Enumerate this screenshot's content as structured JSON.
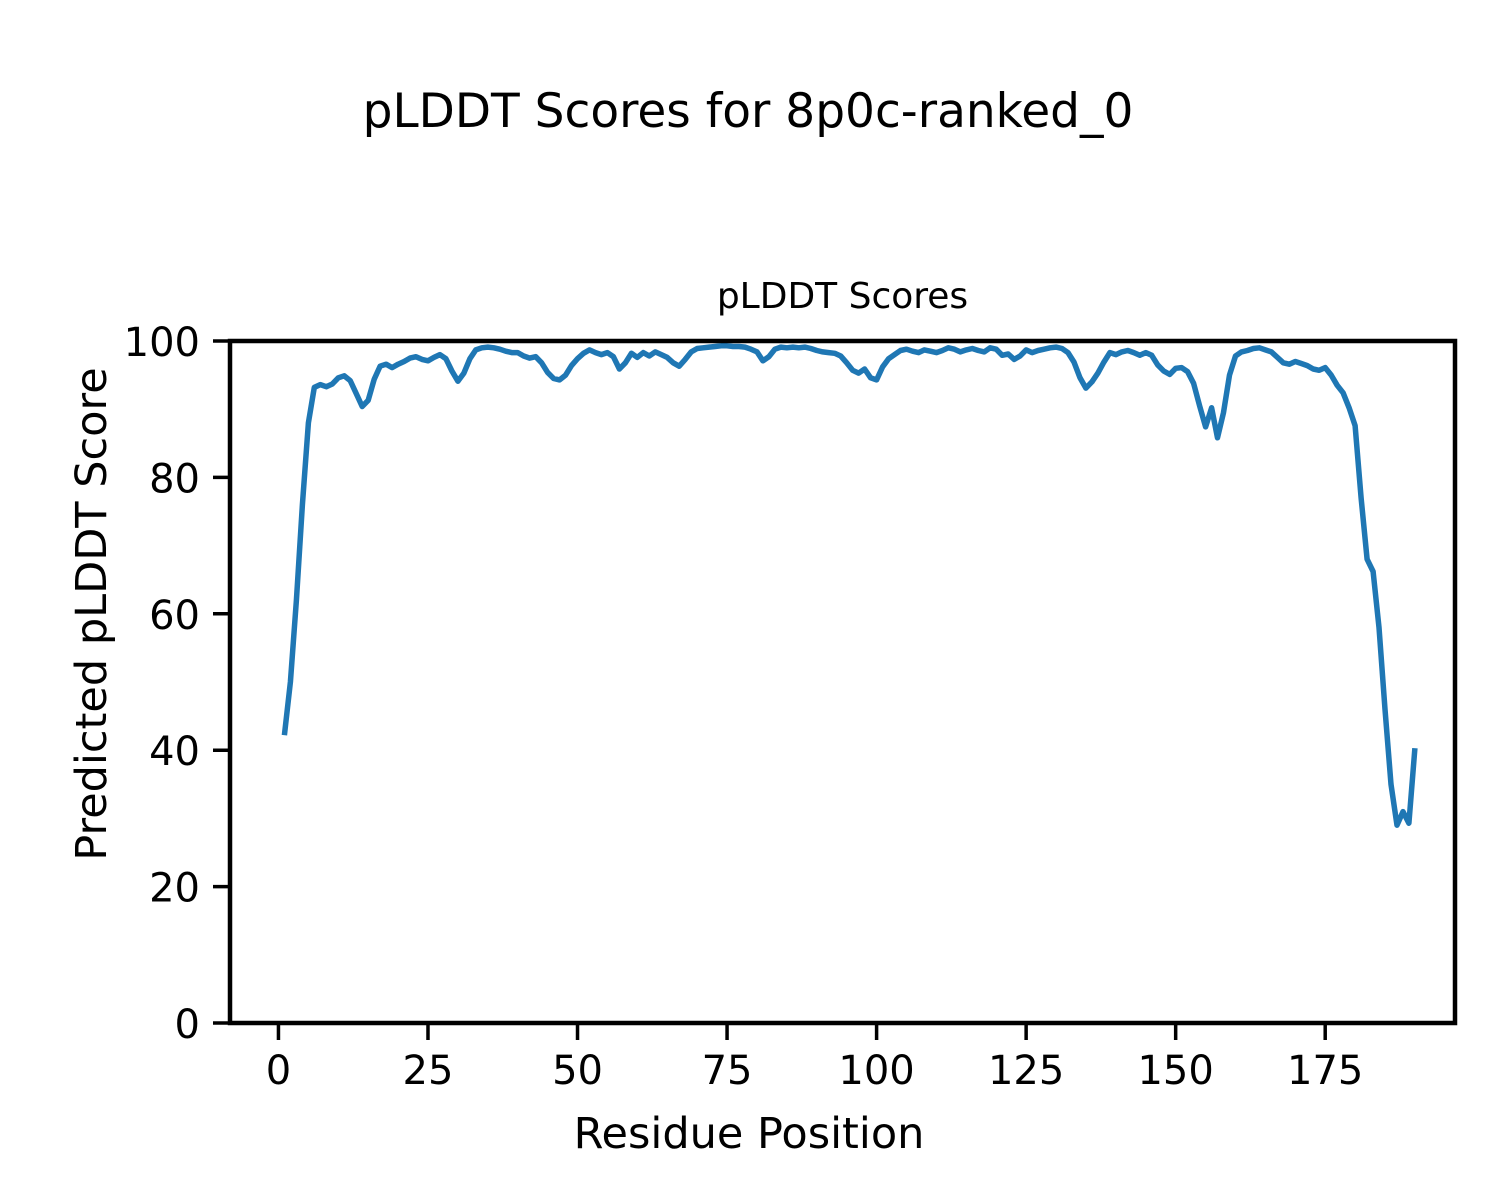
{
  "figure": {
    "suptitle": "pLDDT Scores for 8p0c-ranked_0",
    "background_color": "#ffffff",
    "text_color": "#000000"
  },
  "chart_data": {
    "type": "line",
    "title": "pLDDT Scores",
    "xlabel": "Residue Position",
    "ylabel": "Predicted pLDDT Score",
    "xlim": [
      -8.1,
      196.7
    ],
    "ylim": [
      0,
      100
    ],
    "x_ticks": [
      0,
      25,
      50,
      75,
      100,
      125,
      150,
      175
    ],
    "y_ticks": [
      0,
      20,
      40,
      60,
      80,
      100
    ],
    "grid": false,
    "legend_position": "none",
    "line_color": "#1f77b4",
    "line_width": 5.5,
    "axis_color": "#000000",
    "series": [
      {
        "name": "pLDDT",
        "x": [
          1,
          2,
          3,
          4,
          5,
          6,
          7,
          8,
          9,
          10,
          11,
          12,
          13,
          14,
          15,
          16,
          17,
          18,
          19,
          20,
          21,
          22,
          23,
          24,
          25,
          26,
          27,
          28,
          29,
          30,
          31,
          32,
          33,
          34,
          35,
          36,
          37,
          38,
          39,
          40,
          41,
          42,
          43,
          44,
          45,
          46,
          47,
          48,
          49,
          50,
          51,
          52,
          53,
          54,
          55,
          56,
          57,
          58,
          59,
          60,
          61,
          62,
          63,
          64,
          65,
          66,
          67,
          68,
          69,
          70,
          71,
          72,
          73,
          74,
          75,
          76,
          77,
          78,
          79,
          80,
          81,
          82,
          83,
          84,
          85,
          86,
          87,
          88,
          89,
          90,
          91,
          92,
          93,
          94,
          95,
          96,
          97,
          98,
          99,
          100,
          101,
          102,
          103,
          104,
          105,
          106,
          107,
          108,
          109,
          110,
          111,
          112,
          113,
          114,
          115,
          116,
          117,
          118,
          119,
          120,
          121,
          122,
          123,
          124,
          125,
          126,
          127,
          128,
          129,
          130,
          131,
          132,
          133,
          134,
          135,
          136,
          137,
          138,
          139,
          140,
          141,
          142,
          143,
          144,
          145,
          146,
          147,
          148,
          149,
          150,
          151,
          152,
          153,
          154,
          155,
          156,
          157,
          158,
          159,
          160,
          161,
          162,
          163,
          164,
          165,
          166,
          167,
          168,
          169,
          170,
          171,
          172,
          173,
          174,
          175,
          176,
          177,
          178,
          179,
          180,
          181,
          182,
          183,
          184,
          185,
          186,
          187,
          188,
          189,
          190
        ],
        "y": [
          42.2,
          50.0,
          62.0,
          76.0,
          88.0,
          93.2,
          93.6,
          93.3,
          93.7,
          94.6,
          94.9,
          94.2,
          92.3,
          90.4,
          91.3,
          94.4,
          96.3,
          96.6,
          96.1,
          96.6,
          97.0,
          97.5,
          97.7,
          97.3,
          97.1,
          97.6,
          98.0,
          97.4,
          95.6,
          94.1,
          95.3,
          97.4,
          98.7,
          99.0,
          99.1,
          99.0,
          98.8,
          98.5,
          98.3,
          98.3,
          97.8,
          97.5,
          97.7,
          96.8,
          95.4,
          94.5,
          94.3,
          95.0,
          96.4,
          97.4,
          98.2,
          98.7,
          98.3,
          98.0,
          98.3,
          97.7,
          95.9,
          96.8,
          98.2,
          97.6,
          98.3,
          97.8,
          98.4,
          98.0,
          97.6,
          96.8,
          96.3,
          97.3,
          98.4,
          98.9,
          99.0,
          99.1,
          99.2,
          99.3,
          99.3,
          99.2,
          99.2,
          99.1,
          98.8,
          98.4,
          97.1,
          97.7,
          98.8,
          99.1,
          99.0,
          99.1,
          99.0,
          99.1,
          98.9,
          98.6,
          98.4,
          98.3,
          98.2,
          97.8,
          96.8,
          95.7,
          95.3,
          95.9,
          94.6,
          94.3,
          96.2,
          97.4,
          98.0,
          98.6,
          98.8,
          98.5,
          98.3,
          98.7,
          98.5,
          98.3,
          98.6,
          99.0,
          98.8,
          98.4,
          98.7,
          98.9,
          98.6,
          98.4,
          99.0,
          98.8,
          97.9,
          98.1,
          97.3,
          97.8,
          98.7,
          98.3,
          98.6,
          98.8,
          99.0,
          99.1,
          98.9,
          98.3,
          96.9,
          94.6,
          93.1,
          94.0,
          95.3,
          96.9,
          98.3,
          98.0,
          98.4,
          98.6,
          98.3,
          97.9,
          98.3,
          97.9,
          96.5,
          95.6,
          95.1,
          96.0,
          96.1,
          95.5,
          93.8,
          90.5,
          87.4,
          90.2,
          85.8,
          89.5,
          95.0,
          97.8,
          98.4,
          98.6,
          98.9,
          99.0,
          98.7,
          98.4,
          97.6,
          96.8,
          96.6,
          97.0,
          96.7,
          96.4,
          95.9,
          95.7,
          96.1,
          95.0,
          93.5,
          92.4,
          90.2,
          87.6,
          77.0,
          68.0,
          66.2,
          58.0,
          46.0,
          35.0,
          29.0,
          31.0,
          29.3,
          40.3
        ]
      }
    ]
  }
}
